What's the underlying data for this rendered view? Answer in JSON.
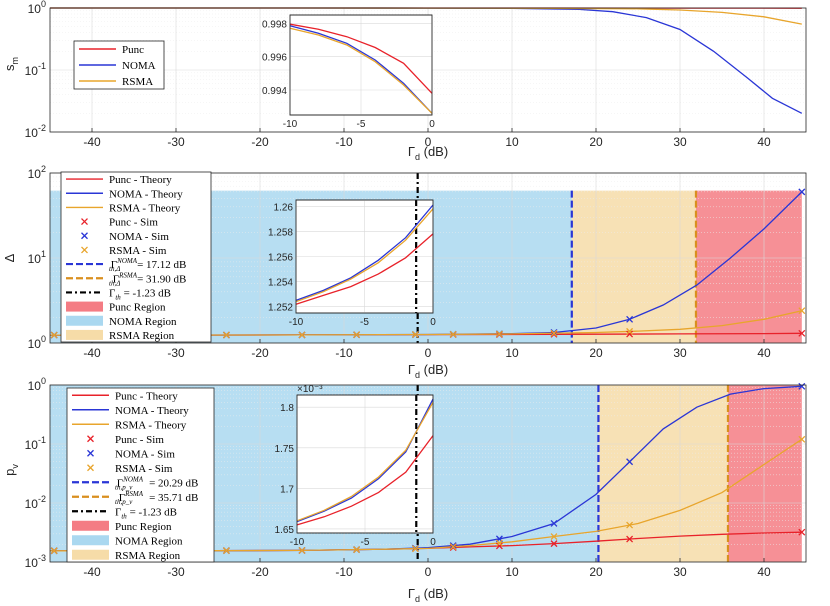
{
  "colors": {
    "punc": "#e8222a",
    "noma": "#2a36d6",
    "rsma": "#e8a52c",
    "punc_region": "#f47c84",
    "noma_region": "#aad8f0",
    "rsma_region": "#f6dca8"
  },
  "chart_data": [
    {
      "id": "s_m",
      "type": "line",
      "ylabel": "s",
      "ylabel_sub": "m",
      "xlabel": "Γ",
      "xlabel_sub": "d",
      "xlabel_unit": "(dB)",
      "xlim": [
        -45,
        45
      ],
      "ylim": [
        0.01,
        1
      ],
      "yscale": "log",
      "x_ticks": [
        "-40",
        "-30",
        "-20",
        "-10",
        "0",
        "10",
        "20",
        "30",
        "40"
      ],
      "y_ticks": [
        {
          "base": "10",
          "exp": "-2"
        },
        {
          "base": "10",
          "exp": "-1"
        },
        {
          "base": "10",
          "exp": "0"
        }
      ],
      "legend": [
        "Punc",
        "NOMA",
        "RSMA"
      ],
      "series": [
        {
          "name": "Punc",
          "x": [
            -45,
            -30,
            -15,
            0,
            15,
            25,
            35,
            44.5
          ],
          "y": [
            1,
            1,
            1,
            1,
            0.999,
            0.998,
            0.996,
            0.994
          ]
        },
        {
          "name": "NOMA",
          "x": [
            -45,
            -30,
            -15,
            0,
            10,
            18,
            22,
            26,
            30,
            34,
            38,
            41,
            44.5
          ],
          "y": [
            1,
            1,
            1,
            0.998,
            0.99,
            0.95,
            0.87,
            0.7,
            0.45,
            0.2,
            0.075,
            0.035,
            0.02
          ]
        },
        {
          "name": "RSMA",
          "x": [
            -45,
            -30,
            -15,
            0,
            15,
            25,
            30,
            35,
            40,
            44.5
          ],
          "y": [
            1,
            1,
            1,
            0.998,
            0.99,
            0.97,
            0.93,
            0.85,
            0.72,
            0.55
          ]
        }
      ],
      "inset": {
        "xlim": [
          -10,
          0
        ],
        "ylim": [
          0.9925,
          0.9985
        ],
        "x_ticks": [
          "-10",
          "-5",
          "0"
        ],
        "y_ticks": [
          "0.994",
          "0.996",
          "0.998"
        ],
        "series": [
          {
            "name": "Punc",
            "x": [
              -10,
              -8,
              -6,
              -4,
              -2,
              0
            ],
            "y": [
              0.99795,
              0.99765,
              0.9972,
              0.99655,
              0.9956,
              0.9938
            ]
          },
          {
            "name": "NOMA",
            "x": [
              -10,
              -8,
              -6,
              -4,
              -2,
              0
            ],
            "y": [
              0.99785,
              0.9974,
              0.9968,
              0.9958,
              0.9944,
              0.9926
            ]
          },
          {
            "name": "RSMA",
            "x": [
              -10,
              -8,
              -6,
              -4,
              -2,
              0
            ],
            "y": [
              0.9977,
              0.9973,
              0.9967,
              0.9957,
              0.9943,
              0.9926
            ]
          }
        ]
      }
    },
    {
      "id": "delta",
      "type": "line",
      "ylabel": "Δ",
      "xlabel": "Γ",
      "xlabel_sub": "d",
      "xlabel_unit": "(dB)",
      "xlim": [
        -45,
        45
      ],
      "ylim": [
        1,
        100
      ],
      "yscale": "log",
      "x_ticks": [
        "-40",
        "-30",
        "-20",
        "-10",
        "0",
        "10",
        "20",
        "30",
        "40"
      ],
      "y_ticks": [
        {
          "base": "10",
          "exp": "0"
        },
        {
          "base": "10",
          "exp": "1"
        },
        {
          "base": "10",
          "exp": "2"
        }
      ],
      "regions": [
        {
          "name": "NOMA Region",
          "from": -45,
          "to": 17.12,
          "top": 62
        },
        {
          "name": "RSMA Region",
          "from": 17.12,
          "to": 31.9,
          "top": 62
        },
        {
          "name": "Punc Region",
          "from": 31.9,
          "to": 44.5,
          "top": 62
        }
      ],
      "thresholds": [
        {
          "name": "NOMA",
          "x": 17.12,
          "label": "= 17.12 dB"
        },
        {
          "name": "RSMA",
          "x": 31.9,
          "label": "= 31.90 dB"
        },
        {
          "name": "th",
          "x": -1.23,
          "label": "= -1.23 dB"
        }
      ],
      "legend": [
        "Punc - Theory",
        "NOMA - Theory",
        "RSMA - Theory",
        "Punc - Sim",
        "NOMA - Sim",
        "RSMA - Sim",
        {
          "base": "Γ",
          "sup": "NOMA",
          "sub": "th,Δ",
          "val": "= 17.12 dB"
        },
        {
          "base": "Γ",
          "sup": "RSMA",
          "sub": "th,Δ",
          "val": "= 31.90 dB"
        },
        {
          "base": "Γ",
          "sup": "",
          "sub": "th",
          "val": "= -1.23 dB"
        },
        "Punc Region",
        "NOMA Region",
        "RSMA Region"
      ],
      "series": [
        {
          "name": "Punc",
          "x": [
            -45,
            -30,
            -15,
            0,
            10,
            20,
            30,
            40,
            44.5
          ],
          "y": [
            1.24,
            1.24,
            1.245,
            1.255,
            1.26,
            1.27,
            1.28,
            1.29,
            1.3
          ]
        },
        {
          "name": "NOMA",
          "x": [
            -45,
            -30,
            -15,
            0,
            10,
            15,
            20,
            24,
            28,
            32,
            36,
            40,
            44.5
          ],
          "y": [
            1.24,
            1.24,
            1.245,
            1.26,
            1.29,
            1.33,
            1.5,
            1.9,
            2.8,
            4.8,
            10,
            22,
            60
          ]
        },
        {
          "name": "RSMA",
          "x": [
            -45,
            -30,
            -15,
            0,
            10,
            20,
            25,
            30,
            35,
            40,
            44.5
          ],
          "y": [
            1.24,
            1.24,
            1.245,
            1.26,
            1.28,
            1.33,
            1.38,
            1.45,
            1.6,
            1.9,
            2.4
          ]
        }
      ],
      "sim_x": [
        -44.5,
        -24,
        -15,
        -8.5,
        -1.5,
        3,
        8.5,
        15,
        24,
        44.5
      ],
      "inset": {
        "xlim": [
          -10,
          0
        ],
        "ylim": [
          1.2515,
          1.2605
        ],
        "x_ticks": [
          "-10",
          "-5",
          "0"
        ],
        "y_ticks": [
          "1.252",
          "1.254",
          "1.256",
          "1.258",
          "1.26"
        ],
        "vline": -1.23,
        "series": [
          {
            "name": "Punc",
            "x": [
              -10,
              -8,
              -6,
              -4,
              -2,
              0
            ],
            "y": [
              1.2522,
              1.2529,
              1.2536,
              1.2546,
              1.2559,
              1.2578
            ]
          },
          {
            "name": "NOMA",
            "x": [
              -10,
              -8,
              -6,
              -4,
              -2,
              0
            ],
            "y": [
              1.2525,
              1.2533,
              1.2543,
              1.2557,
              1.2575,
              1.2601
            ]
          },
          {
            "name": "RSMA",
            "x": [
              -10,
              -8,
              -6,
              -4,
              -2,
              0
            ],
            "y": [
              1.2524,
              1.2532,
              1.2542,
              1.2555,
              1.2573,
              1.2598
            ]
          }
        ]
      }
    },
    {
      "id": "p_v",
      "type": "line",
      "ylabel": "p",
      "ylabel_sub": "v",
      "xlabel": "Γ",
      "xlabel_sub": "d",
      "xlabel_unit": "(dB)",
      "xlim": [
        -45,
        45
      ],
      "ylim": [
        0.001,
        1
      ],
      "yscale": "log",
      "x_ticks": [
        "-40",
        "-30",
        "-20",
        "-10",
        "0",
        "10",
        "20",
        "30",
        "40"
      ],
      "y_ticks": [
        {
          "base": "10",
          "exp": "-3"
        },
        {
          "base": "10",
          "exp": "-2"
        },
        {
          "base": "10",
          "exp": "-1"
        },
        {
          "base": "10",
          "exp": "0"
        }
      ],
      "regions": [
        {
          "name": "NOMA Region",
          "from": -45,
          "to": 20.29,
          "top": 1
        },
        {
          "name": "RSMA Region",
          "from": 20.29,
          "to": 35.71,
          "top": 1
        },
        {
          "name": "Punc Region",
          "from": 35.71,
          "to": 44.5,
          "top": 1
        }
      ],
      "thresholds": [
        {
          "name": "NOMA",
          "x": 20.29,
          "label": "= 20.29 dB"
        },
        {
          "name": "RSMA",
          "x": 35.71,
          "label": "= 35.71 dB"
        },
        {
          "name": "th",
          "x": -1.23,
          "label": "= -1.23 dB"
        }
      ],
      "legend": [
        "Punc - Theory",
        "NOMA - Theory",
        "RSMA - Theory",
        "Punc - Sim",
        "NOMA - Sim",
        "RSMA - Sim",
        {
          "base": "Γ",
          "sup": "NOMA",
          "sub": "th,p_v",
          "val": "= 20.29 dB"
        },
        {
          "base": "Γ",
          "sup": "RSMA",
          "sub": "th,p_v",
          "val": "= 35.71 dB"
        },
        {
          "base": "Γ",
          "sup": "",
          "sub": "th",
          "val": "= -1.23 dB"
        },
        "Punc Region",
        "NOMA Region",
        "RSMA Region"
      ],
      "series": [
        {
          "name": "Punc",
          "x": [
            -45,
            -30,
            -15,
            -5,
            0,
            5,
            10,
            15,
            20,
            25,
            30,
            35,
            40,
            44.5
          ],
          "y": [
            0.00155,
            0.00155,
            0.00157,
            0.00165,
            0.0017,
            0.0018,
            0.0019,
            0.00205,
            0.00225,
            0.0025,
            0.00275,
            0.00295,
            0.0031,
            0.0032
          ]
        },
        {
          "name": "NOMA",
          "x": [
            -45,
            -30,
            -15,
            -5,
            0,
            5,
            10,
            15,
            20,
            24,
            28,
            32,
            36,
            40,
            44.5
          ],
          "y": [
            0.00155,
            0.00155,
            0.00157,
            0.00165,
            0.00175,
            0.002,
            0.0027,
            0.0045,
            0.014,
            0.05,
            0.18,
            0.42,
            0.7,
            0.87,
            0.95
          ]
        },
        {
          "name": "RSMA",
          "x": [
            -45,
            -30,
            -15,
            -5,
            0,
            5,
            10,
            15,
            20,
            25,
            30,
            35,
            40,
            44.5
          ],
          "y": [
            0.00155,
            0.00155,
            0.00157,
            0.00165,
            0.0017,
            0.0019,
            0.0022,
            0.0027,
            0.0033,
            0.0045,
            0.0075,
            0.015,
            0.045,
            0.12
          ]
        }
      ],
      "sim_x": [
        -44.5,
        -24,
        -15,
        -8.5,
        -1.5,
        3,
        8.5,
        15,
        24,
        44.5
      ],
      "inset": {
        "xlim": [
          -10,
          0
        ],
        "ylim": [
          1.645,
          1.815
        ],
        "exponent_label": "×10⁻³",
        "x_ticks": [
          "-10",
          "-5",
          "0"
        ],
        "y_ticks": [
          "1.65",
          "1.7",
          "1.75",
          "1.8"
        ],
        "vline": -1.23,
        "series": [
          {
            "name": "Punc",
            "x": [
              -10,
              -8,
              -6,
              -4,
              -2,
              0
            ],
            "y": [
              1.655,
              1.665,
              1.678,
              1.695,
              1.72,
              1.765
            ]
          },
          {
            "name": "NOMA",
            "x": [
              -10,
              -8,
              -6,
              -4,
              -2,
              0
            ],
            "y": [
              1.659,
              1.672,
              1.688,
              1.712,
              1.745,
              1.81
            ]
          },
          {
            "name": "RSMA",
            "x": [
              -10,
              -8,
              -6,
              -4,
              -2,
              0
            ],
            "y": [
              1.66,
              1.673,
              1.69,
              1.714,
              1.747,
              1.806
            ]
          }
        ]
      }
    }
  ]
}
